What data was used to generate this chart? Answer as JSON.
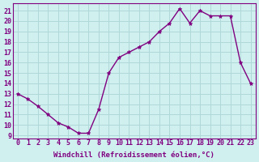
{
  "x": [
    0,
    1,
    2,
    3,
    4,
    5,
    6,
    7,
    8,
    9,
    10,
    11,
    12,
    13,
    14,
    15,
    16,
    17,
    18,
    19,
    20,
    21,
    22,
    23
  ],
  "y": [
    13,
    12.5,
    11.8,
    11,
    10.2,
    9.8,
    9.2,
    9.2,
    11.5,
    15,
    16.5,
    17,
    17.5,
    18,
    19,
    19.8,
    21.2,
    19.8,
    21,
    20.5,
    20.5,
    20.5,
    16,
    14
  ],
  "line_color": "#800080",
  "marker_color": "#800080",
  "bg_color": "#d0f0f0",
  "grid_color": "#b0d8d8",
  "xlabel": "Windchill (Refroidissement éolien,°C)",
  "xlim": [
    -0.5,
    23.5
  ],
  "ylim": [
    8.7,
    21.7
  ],
  "yticks": [
    9,
    10,
    11,
    12,
    13,
    14,
    15,
    16,
    17,
    18,
    19,
    20,
    21
  ],
  "xticks": [
    0,
    1,
    2,
    3,
    4,
    5,
    6,
    7,
    8,
    9,
    10,
    11,
    12,
    13,
    14,
    15,
    16,
    17,
    18,
    19,
    20,
    21,
    22,
    23
  ],
  "label_fontsize": 6.5,
  "tick_fontsize": 6
}
